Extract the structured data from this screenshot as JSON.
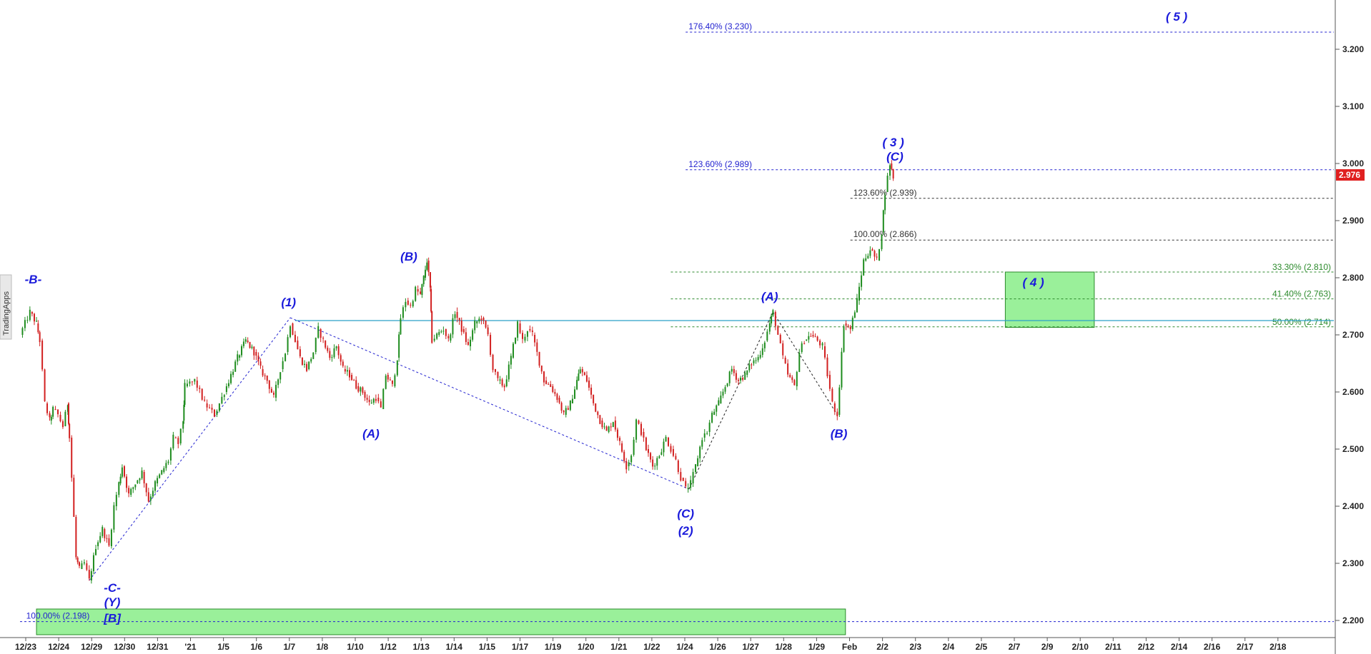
{
  "chart_data": {
    "type": "candlestick",
    "watermark": "TradingApps",
    "last_price": "2.976",
    "colors": {
      "up": "#1e8c1e",
      "down": "#d22020",
      "wave_label": "#1a1adb",
      "fib_blue": "#2323d0",
      "fib_black": "#333333",
      "fib_green": "#2c8a2c",
      "zone_fill": "#9af09a",
      "zone_border": "#2a8a2a",
      "price_tag": "#e02020",
      "h_line": "#2aa0c8"
    },
    "y_axis": {
      "min": 2.15,
      "max": 3.28,
      "ticks": [
        "2.200",
        "2.300",
        "2.400",
        "2.500",
        "2.600",
        "2.700",
        "2.800",
        "2.900",
        "3.000",
        "3.100",
        "3.200"
      ]
    },
    "x_axis": {
      "ticks": [
        "12/23",
        "12/24",
        "12/29",
        "12/30",
        "12/31",
        "'21",
        "1/5",
        "1/6",
        "1/7",
        "1/8",
        "1/10",
        "1/12",
        "1/13",
        "1/14",
        "1/15",
        "1/17",
        "1/19",
        "1/20",
        "1/21",
        "1/22",
        "1/24",
        "1/26",
        "1/27",
        "1/28",
        "1/29",
        "Feb",
        "2/2",
        "2/3",
        "2/4",
        "2/5",
        "2/7",
        "2/9",
        "2/10",
        "2/11",
        "2/12",
        "2/14",
        "2/16",
        "2/17",
        "2/18"
      ]
    },
    "price_path": [
      [
        0,
        2.7
      ],
      [
        0.3,
        2.74
      ],
      [
        0.5,
        2.72
      ],
      [
        0.6,
        2.69
      ],
      [
        0.75,
        2.58
      ],
      [
        0.9,
        2.55
      ],
      [
        1.0,
        2.57
      ],
      [
        1.15,
        2.56
      ],
      [
        1.3,
        2.54
      ],
      [
        1.45,
        2.58
      ],
      [
        1.5,
        2.52
      ],
      [
        1.7,
        2.31
      ],
      [
        1.8,
        2.29
      ],
      [
        1.95,
        2.3
      ],
      [
        2.1,
        2.27
      ],
      [
        2.3,
        2.33
      ],
      [
        2.5,
        2.36
      ],
      [
        2.7,
        2.33
      ],
      [
        2.85,
        2.4
      ],
      [
        3.0,
        2.44
      ],
      [
        3.1,
        2.47
      ],
      [
        3.3,
        2.42
      ],
      [
        3.5,
        2.44
      ],
      [
        3.7,
        2.46
      ],
      [
        3.9,
        2.41
      ],
      [
        4.1,
        2.44
      ],
      [
        4.3,
        2.46
      ],
      [
        4.5,
        2.48
      ],
      [
        4.65,
        2.52
      ],
      [
        4.8,
        2.51
      ],
      [
        4.95,
        2.55
      ],
      [
        5.0,
        2.61
      ],
      [
        5.3,
        2.62
      ],
      [
        5.6,
        2.58
      ],
      [
        5.9,
        2.56
      ],
      [
        6.2,
        2.6
      ],
      [
        6.4,
        2.63
      ],
      [
        6.6,
        2.66
      ],
      [
        6.85,
        2.69
      ],
      [
        7.1,
        2.67
      ],
      [
        7.3,
        2.64
      ],
      [
        7.5,
        2.62
      ],
      [
        7.7,
        2.59
      ],
      [
        7.9,
        2.64
      ],
      [
        8.05,
        2.67
      ],
      [
        8.2,
        2.72
      ],
      [
        8.35,
        2.69
      ],
      [
        8.5,
        2.66
      ],
      [
        8.7,
        2.64
      ],
      [
        8.9,
        2.67
      ],
      [
        9.05,
        2.71
      ],
      [
        9.2,
        2.69
      ],
      [
        9.4,
        2.66
      ],
      [
        9.6,
        2.68
      ],
      [
        9.8,
        2.64
      ],
      [
        10.0,
        2.63
      ],
      [
        10.2,
        2.61
      ],
      [
        10.4,
        2.6
      ],
      [
        10.6,
        2.58
      ],
      [
        10.8,
        2.59
      ],
      [
        10.95,
        2.57
      ],
      [
        11.1,
        2.63
      ],
      [
        11.3,
        2.61
      ],
      [
        11.45,
        2.66
      ],
      [
        11.55,
        2.73
      ],
      [
        11.7,
        2.76
      ],
      [
        11.85,
        2.75
      ],
      [
        12.0,
        2.78
      ],
      [
        12.15,
        2.77
      ],
      [
        12.25,
        2.8
      ],
      [
        12.35,
        2.83
      ],
      [
        12.45,
        2.78
      ],
      [
        12.5,
        2.69
      ],
      [
        12.65,
        2.7
      ],
      [
        12.85,
        2.71
      ],
      [
        13.0,
        2.69
      ],
      [
        13.2,
        2.74
      ],
      [
        13.4,
        2.71
      ],
      [
        13.6,
        2.68
      ],
      [
        13.8,
        2.72
      ],
      [
        14.0,
        2.73
      ],
      [
        14.2,
        2.7
      ],
      [
        14.35,
        2.64
      ],
      [
        14.5,
        2.62
      ],
      [
        14.7,
        2.61
      ],
      [
        14.9,
        2.66
      ],
      [
        15.1,
        2.72
      ],
      [
        15.25,
        2.69
      ],
      [
        15.4,
        2.71
      ],
      [
        15.55,
        2.7
      ],
      [
        15.9,
        2.62
      ],
      [
        16.1,
        2.61
      ],
      [
        16.3,
        2.59
      ],
      [
        16.5,
        2.56
      ],
      [
        16.7,
        2.58
      ],
      [
        16.9,
        2.62
      ],
      [
        17.0,
        2.64
      ],
      [
        17.2,
        2.62
      ],
      [
        17.4,
        2.58
      ],
      [
        17.6,
        2.55
      ],
      [
        17.8,
        2.53
      ],
      [
        18.0,
        2.55
      ],
      [
        18.2,
        2.51
      ],
      [
        18.4,
        2.47
      ],
      [
        18.55,
        2.49
      ],
      [
        18.7,
        2.55
      ],
      [
        18.85,
        2.53
      ],
      [
        19.0,
        2.5
      ],
      [
        19.2,
        2.47
      ],
      [
        19.4,
        2.49
      ],
      [
        19.6,
        2.52
      ],
      [
        19.75,
        2.5
      ],
      [
        19.9,
        2.48
      ],
      [
        20.05,
        2.45
      ],
      [
        20.2,
        2.43
      ],
      [
        20.35,
        2.44
      ],
      [
        20.5,
        2.47
      ],
      [
        20.7,
        2.52
      ],
      [
        20.85,
        2.53
      ],
      [
        21.0,
        2.56
      ],
      [
        21.2,
        2.58
      ],
      [
        21.4,
        2.61
      ],
      [
        21.6,
        2.64
      ],
      [
        21.8,
        2.62
      ],
      [
        22.0,
        2.63
      ],
      [
        22.2,
        2.65
      ],
      [
        22.4,
        2.66
      ],
      [
        22.6,
        2.69
      ],
      [
        22.75,
        2.72
      ],
      [
        22.85,
        2.74
      ],
      [
        23.0,
        2.7
      ],
      [
        23.15,
        2.66
      ],
      [
        23.3,
        2.63
      ],
      [
        23.5,
        2.61
      ],
      [
        23.65,
        2.67
      ],
      [
        23.8,
        2.69
      ],
      [
        24.0,
        2.7
      ],
      [
        24.2,
        2.69
      ],
      [
        24.35,
        2.68
      ],
      [
        24.5,
        2.63
      ],
      [
        24.65,
        2.58
      ],
      [
        24.8,
        2.56
      ],
      [
        25.0,
        2.72
      ],
      [
        25.2,
        2.71
      ],
      [
        25.4,
        2.76
      ],
      [
        25.6,
        2.83
      ],
      [
        25.8,
        2.85
      ],
      [
        26.0,
        2.83
      ],
      [
        26.15,
        2.88
      ],
      [
        26.25,
        2.95
      ],
      [
        26.4,
        3.0
      ],
      [
        26.5,
        2.976
      ]
    ],
    "waves": [
      {
        "text": "-B-",
        "x": 0.4,
        "y": 2.79
      },
      {
        "text": "-C-",
        "x": 2.8,
        "y": 2.25
      },
      {
        "text": "(Y)",
        "x": 2.8,
        "y": 2.225
      },
      {
        "text": "[B]",
        "x": 2.8,
        "y": 2.197
      },
      {
        "text": "(1)",
        "x": 8.15,
        "y": 2.75
      },
      {
        "text": "(A)",
        "x": 10.65,
        "y": 2.52
      },
      {
        "text": "(B)",
        "x": 11.8,
        "y": 2.83
      },
      {
        "text": "(C)",
        "x": 20.2,
        "y": 2.38
      },
      {
        "text": "(2)",
        "x": 20.2,
        "y": 2.35
      },
      {
        "text": "(A)",
        "x": 22.75,
        "y": 2.76
      },
      {
        "text": "(B)",
        "x": 24.85,
        "y": 2.52
      },
      {
        "text": "( 3 )",
        "x": 26.5,
        "y": 3.03
      },
      {
        "text": "(C)",
        "x": 26.55,
        "y": 3.005
      },
      {
        "text": "( 4 )",
        "x": 30.75,
        "y": 2.785
      },
      {
        "text": "( 5 )",
        "x": 35.1,
        "y": 3.25
      }
    ],
    "fib_levels": [
      {
        "label": "176.40% (3.230)",
        "value": 3.23,
        "x_start": 20.2,
        "color_key": "fib_blue",
        "label_x": 20.2
      },
      {
        "label": "123.60% (2.989)",
        "value": 2.989,
        "x_start": 20.2,
        "color_key": "fib_blue",
        "label_x": 20.2
      },
      {
        "label": "123.60% (2.939)",
        "value": 2.939,
        "x_start": 25.2,
        "color_key": "fib_black",
        "label_x": 25.2
      },
      {
        "label": "100.00% (2.866)",
        "value": 2.866,
        "x_start": 25.2,
        "color_key": "fib_black",
        "label_x": 25.2
      },
      {
        "label": "33.30% (2.810)",
        "value": 2.81,
        "x_start": 19.75,
        "color_key": "fib_green",
        "label_x": -1
      },
      {
        "label": "41.40% (2.763)",
        "value": 2.763,
        "x_start": 19.75,
        "color_key": "fib_green",
        "label_x": -1
      },
      {
        "label": "50.00% (2.714)",
        "value": 2.714,
        "x_start": 19.75,
        "color_key": "fib_green",
        "label_x": -1
      },
      {
        "label": "100.00% (2.198)",
        "value": 2.198,
        "x_start": 0,
        "color_key": "fib_blue",
        "label_x": 0.1
      }
    ],
    "horizontal_line": {
      "value": 2.725,
      "x_start": 8.35,
      "x_end": 39.5
    },
    "zones": [
      {
        "x_start": 0.5,
        "x_end": 25.05,
        "y_low": 2.175,
        "y_high": 2.22
      },
      {
        "x_start": 29.9,
        "x_end": 32.6,
        "y_low": 2.713,
        "y_high": 2.81
      }
    ],
    "dotted_trends": [
      {
        "points": [
          [
            2.1,
            2.27
          ],
          [
            8.2,
            2.73
          ]
        ]
      },
      {
        "points": [
          [
            8.2,
            2.73
          ],
          [
            20.3,
            2.43
          ]
        ]
      },
      {
        "points": [
          [
            20.3,
            2.43
          ],
          [
            22.85,
            2.74
          ]
        ]
      },
      {
        "points": [
          [
            22.85,
            2.74
          ],
          [
            24.8,
            2.56
          ]
        ]
      }
    ]
  }
}
